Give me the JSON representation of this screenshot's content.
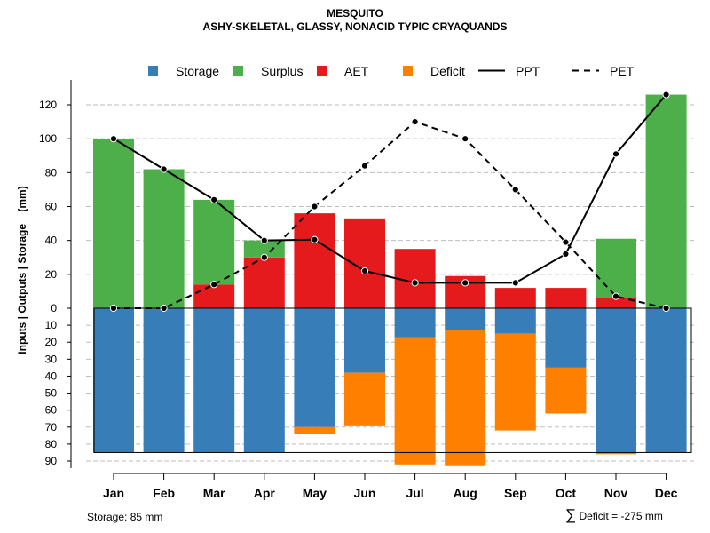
{
  "title": "MESQUITO",
  "subtitle": "ASHY-SKELETAL, GLASSY, NONACID TYPIC CRYAQUANDS",
  "footer": {
    "storage_label": "Storage: 85 mm",
    "deficit_symbol": "∑",
    "deficit_label": "Deficit = -275 mm"
  },
  "colors": {
    "storage": "#377EB8",
    "surplus": "#4DAF4A",
    "aet": "#E41A1C",
    "deficit": "#FF7F00",
    "line": "#000000",
    "grid": "#BEBEBE"
  },
  "chart_data": {
    "type": "bar",
    "ylabel": "Inputs | Outputs | Storage    (mm)",
    "ylim_top": [
      0,
      130
    ],
    "ylim_bottom": [
      0,
      90
    ],
    "yticks_top": [
      0,
      20,
      40,
      60,
      80,
      100,
      120
    ],
    "yticks_bottom": [
      10,
      20,
      30,
      40,
      50,
      60,
      70,
      80,
      90
    ],
    "soil_storage_capacity": 85,
    "categories": [
      "Jan",
      "Feb",
      "Mar",
      "Apr",
      "May",
      "Jun",
      "Jul",
      "Aug",
      "Sep",
      "Oct",
      "Nov",
      "Dec"
    ],
    "legend": [
      {
        "name": "Storage",
        "kind": "box",
        "color": "#377EB8"
      },
      {
        "name": "Surplus",
        "kind": "box",
        "color": "#4DAF4A"
      },
      {
        "name": "AET",
        "kind": "box",
        "color": "#E41A1C"
      },
      {
        "name": "Deficit",
        "kind": "box",
        "color": "#FF7F00"
      },
      {
        "name": "PPT",
        "kind": "solid"
      },
      {
        "name": "PET",
        "kind": "dashed"
      }
    ],
    "series": [
      {
        "name": "AET",
        "values": [
          0,
          0,
          14,
          30,
          56,
          53,
          35,
          19,
          12,
          12,
          6,
          0
        ]
      },
      {
        "name": "Surplus",
        "values": [
          100,
          82,
          50,
          10,
          0,
          0,
          0,
          0,
          0,
          0,
          35,
          126
        ]
      },
      {
        "name": "Storage",
        "values": [
          85,
          85,
          85,
          85,
          70,
          38,
          17,
          13,
          15,
          35,
          85,
          85
        ]
      },
      {
        "name": "Deficit",
        "values": [
          0,
          0,
          0,
          0,
          4,
          31,
          75,
          80,
          57,
          27,
          1,
          0
        ]
      },
      {
        "name": "PPT",
        "values": [
          100,
          82,
          64,
          40,
          40.5,
          22,
          15,
          15,
          15,
          32,
          91,
          126
        ]
      },
      {
        "name": "PET",
        "values": [
          0,
          0,
          14,
          30,
          60,
          84,
          110,
          100,
          70,
          39,
          7,
          0
        ]
      }
    ]
  }
}
